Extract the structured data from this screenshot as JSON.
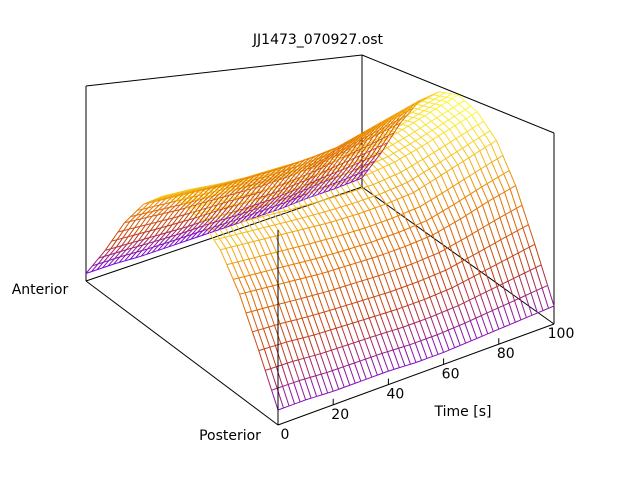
{
  "title": "JJ1473_070927.ost",
  "chart_data": {
    "type": "surface",
    "title": "JJ1473_070927.ost",
    "xlabel": "Time [s]",
    "ylabel_ends": {
      "near": "Posterior",
      "far": "Anterior"
    },
    "x_ticks": [
      0,
      20,
      40,
      60,
      80,
      100
    ],
    "xlim": [
      0,
      100
    ],
    "style": "wireframe mesh",
    "colormap": [
      "#6a00ff",
      "#c03a18",
      "#e87a00",
      "#ffff40"
    ],
    "grid": false,
    "surface": {
      "time_samples": [
        0,
        10,
        20,
        30,
        40,
        50,
        60,
        70,
        80,
        90,
        100
      ],
      "depth_samples": [
        0,
        0.1,
        0.2,
        0.3,
        0.4,
        0.5,
        0.6,
        0.7,
        0.8,
        0.9,
        1.0
      ],
      "z": [
        [
          0.1,
          0.4,
          0.68,
          0.88,
          0.98,
          1.0,
          0.95,
          0.8,
          0.58,
          0.3,
          0.05
        ],
        [
          0.1,
          0.39,
          0.66,
          0.86,
          0.96,
          0.98,
          0.93,
          0.78,
          0.56,
          0.29,
          0.05
        ],
        [
          0.09,
          0.37,
          0.64,
          0.84,
          0.94,
          0.96,
          0.9,
          0.76,
          0.54,
          0.28,
          0.04
        ],
        [
          0.09,
          0.36,
          0.62,
          0.82,
          0.92,
          0.94,
          0.88,
          0.74,
          0.53,
          0.27,
          0.04
        ],
        [
          0.09,
          0.35,
          0.61,
          0.8,
          0.91,
          0.93,
          0.87,
          0.73,
          0.52,
          0.27,
          0.04
        ],
        [
          0.08,
          0.34,
          0.6,
          0.79,
          0.9,
          0.92,
          0.86,
          0.72,
          0.51,
          0.26,
          0.04
        ],
        [
          0.08,
          0.34,
          0.6,
          0.79,
          0.89,
          0.92,
          0.86,
          0.72,
          0.51,
          0.26,
          0.04
        ],
        [
          0.09,
          0.35,
          0.61,
          0.8,
          0.91,
          0.93,
          0.87,
          0.73,
          0.52,
          0.27,
          0.04
        ],
        [
          0.1,
          0.38,
          0.65,
          0.85,
          0.95,
          0.97,
          0.91,
          0.77,
          0.55,
          0.29,
          0.05
        ],
        [
          0.11,
          0.41,
          0.7,
          0.9,
          1.0,
          1.02,
          0.96,
          0.81,
          0.58,
          0.3,
          0.05
        ],
        [
          0.12,
          0.44,
          0.74,
          0.95,
          1.05,
          1.07,
          1.0,
          0.85,
          0.61,
          0.32,
          0.06
        ]
      ]
    }
  }
}
